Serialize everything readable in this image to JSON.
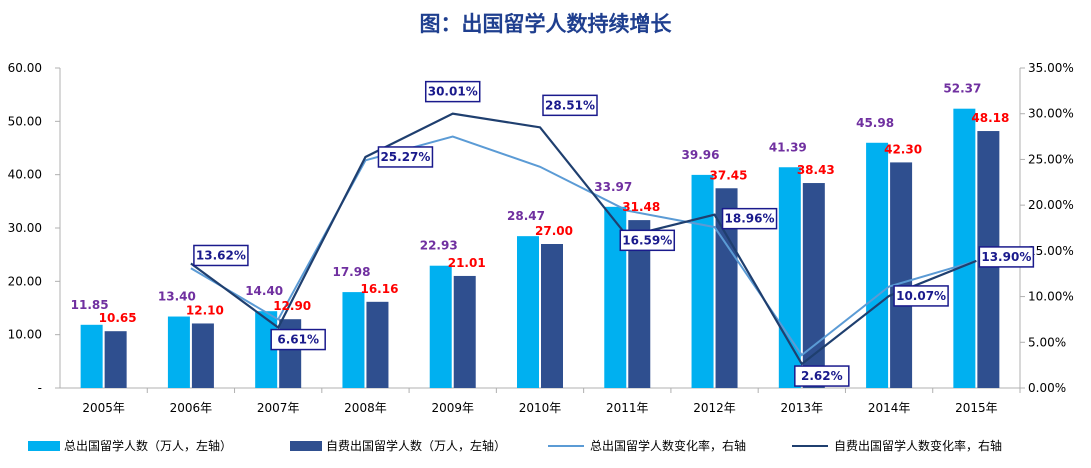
{
  "chart_data": {
    "type": "bar",
    "title": "图：出国留学人数持续增长",
    "categories": [
      "2005年",
      "2006年",
      "2007年",
      "2008年",
      "2009年",
      "2010年",
      "2011年",
      "2012年",
      "2013年",
      "2014年",
      "2015年"
    ],
    "y_left": {
      "ylim": [
        0,
        60
      ],
      "ticks": [
        "-",
        "10.00",
        "20.00",
        "30.00",
        "40.00",
        "50.00",
        "60.00"
      ]
    },
    "y_right": {
      "ylim": [
        0,
        35
      ],
      "ticks": [
        "0.00%",
        "5.00%",
        "10.00%",
        "15.00%",
        "20.00%",
        "25.00%",
        "30.00%",
        "35.00%"
      ]
    },
    "series": [
      {
        "name": "总出国留学人数（万人，左轴）",
        "type": "bar",
        "axis": "left",
        "color": "#00b0f0",
        "values": [
          11.85,
          13.4,
          14.4,
          17.98,
          22.93,
          28.47,
          33.97,
          39.96,
          41.39,
          45.98,
          52.37
        ],
        "labels": [
          "11.85",
          "13.40",
          "14.40",
          "17.98",
          "22.93",
          "28.47",
          "33.97",
          "39.96",
          "41.39",
          "45.98",
          "52.37"
        ]
      },
      {
        "name": "自费出国留学人数（万人，左轴）",
        "type": "bar",
        "axis": "left",
        "color": "#2f4f8f",
        "values": [
          10.65,
          12.1,
          12.9,
          16.16,
          21.01,
          27.0,
          31.48,
          37.45,
          38.43,
          42.3,
          48.18
        ],
        "labels": [
          "10.65",
          "12.10",
          "12.90",
          "16.16",
          "21.01",
          "27.00",
          "31.48",
          "37.45",
          "38.43",
          "42.30",
          "48.18"
        ]
      },
      {
        "name": "总出国留学人数变化率，右轴",
        "type": "line",
        "axis": "right",
        "color": "#5b9bd5",
        "x": [
          "2006年",
          "2007年",
          "2008年",
          "2009年",
          "2010年",
          "2011年",
          "2012年",
          "2013年",
          "2014年",
          "2015年"
        ],
        "values": [
          13.1,
          7.5,
          24.9,
          27.5,
          24.2,
          19.4,
          17.6,
          3.6,
          11.1,
          13.9
        ]
      },
      {
        "name": "自费出国留学人数变化率，右轴",
        "type": "line",
        "axis": "right",
        "color": "#1f3f6f",
        "x": [
          "2006年",
          "2007年",
          "2008年",
          "2009年",
          "2010年",
          "2011年",
          "2012年",
          "2013年",
          "2014年",
          "2015年"
        ],
        "values": [
          13.62,
          6.61,
          25.27,
          30.01,
          28.51,
          16.59,
          18.96,
          2.62,
          10.07,
          13.9
        ],
        "labels": [
          "13.62%",
          "6.61%",
          "25.27%",
          "30.01%",
          "28.51%",
          "16.59%",
          "18.96%",
          "2.62%",
          "10.07%",
          "13.90%"
        ]
      }
    ],
    "legend_position": "bottom",
    "grid": false
  }
}
